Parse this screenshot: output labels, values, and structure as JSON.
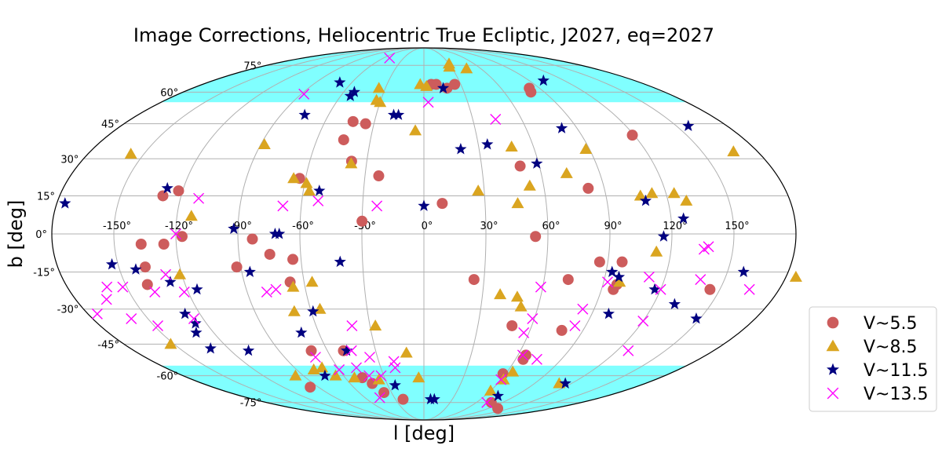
{
  "chart_data": {
    "type": "scatter",
    "projection": "mollweide",
    "title": "Image Corrections, Heliocentric True Ecliptic, J2027, eq=2027",
    "xlabel": "l [deg]",
    "ylabel": "b [deg]",
    "xlim": [
      -180,
      180
    ],
    "ylim": [
      -90,
      90
    ],
    "grid": true,
    "legend_position": "lower-right-outside",
    "x_ticks": [
      {
        "value": -150,
        "label": "-150°"
      },
      {
        "value": -120,
        "label": "-120°"
      },
      {
        "value": -90,
        "label": "-90°"
      },
      {
        "value": -60,
        "label": "-60°"
      },
      {
        "value": -30,
        "label": "-30°"
      },
      {
        "value": 0,
        "label": "0°"
      },
      {
        "value": 30,
        "label": "30°"
      },
      {
        "value": 60,
        "label": "60°"
      },
      {
        "value": 90,
        "label": "90°"
      },
      {
        "value": 120,
        "label": "120°"
      },
      {
        "value": 150,
        "label": "150°"
      }
    ],
    "y_ticks": [
      {
        "value": 75,
        "label": "75°"
      },
      {
        "value": 60,
        "label": "60°"
      },
      {
        "value": 45,
        "label": "45°"
      },
      {
        "value": 30,
        "label": "30°"
      },
      {
        "value": 15,
        "label": "15°"
      },
      {
        "value": 0,
        "label": "0°"
      },
      {
        "value": -15,
        "label": "-15°"
      },
      {
        "value": -30,
        "label": "-30°"
      },
      {
        "value": -45,
        "label": "-45°"
      },
      {
        "value": -60,
        "label": "-60°"
      },
      {
        "value": -75,
        "label": "-75°"
      }
    ],
    "shaded_bands": [
      {
        "from": 55,
        "to": 90,
        "color": "#80ffff"
      },
      {
        "from": -90,
        "to": -55,
        "color": "#80ffff"
      }
    ],
    "series": [
      {
        "name": "V~5.5",
        "marker": "circle",
        "color": "#cd5c5c",
        "points": [
          [
            18,
            62
          ],
          [
            10,
            64
          ],
          [
            6,
            64
          ],
          [
            25,
            64
          ],
          [
            82,
            62
          ],
          [
            80,
            60
          ],
          [
            -43,
            46
          ],
          [
            -35,
            45
          ],
          [
            -45,
            38
          ],
          [
            -38,
            29
          ],
          [
            -23,
            23
          ],
          [
            -63,
            22
          ],
          [
            -129,
            15
          ],
          [
            -122,
            17
          ],
          [
            -30,
            5
          ],
          [
            9,
            12
          ],
          [
            50,
            27
          ],
          [
            82,
            18
          ],
          [
            119,
            40
          ],
          [
            -137,
            -4
          ],
          [
            -117,
            -1
          ],
          [
            -126,
            -4
          ],
          [
            -83,
            -2
          ],
          [
            -64,
            -10
          ],
          [
            -75,
            -8
          ],
          [
            -92,
            -13
          ],
          [
            -137,
            -13
          ],
          [
            -139,
            -20
          ],
          [
            -67,
            -19
          ],
          [
            25,
            -18
          ],
          [
            86,
            -11
          ],
          [
            97,
            -11
          ],
          [
            97,
            -20
          ],
          [
            96,
            -22
          ],
          [
            145,
            -22
          ],
          [
            54,
            -1
          ],
          [
            72,
            -18
          ],
          [
            49,
            -37
          ],
          [
            78,
            -39
          ],
          [
            65,
            -50
          ],
          [
            65,
            -52
          ],
          [
            -50,
            -48
          ],
          [
            -70,
            -48
          ],
          [
            -47,
            -61
          ],
          [
            -42,
            -64
          ],
          [
            -37,
            -69
          ],
          [
            -22,
            -73
          ],
          [
            58,
            -59
          ],
          [
            77,
            -75
          ],
          [
            103,
            -79
          ],
          [
            -97,
            -66
          ]
        ]
      },
      {
        "name": "V~8.5",
        "marker": "triangle",
        "color": "#daa520",
        "points": [
          [
            30,
            76
          ],
          [
            28,
            74
          ],
          [
            45,
            73
          ],
          [
            -3,
            64
          ],
          [
            2,
            63
          ],
          [
            -35,
            62
          ],
          [
            -33,
            56
          ],
          [
            -30,
            55
          ],
          [
            -5,
            42
          ],
          [
            -88,
            36
          ],
          [
            48,
            35
          ],
          [
            -157,
            32
          ],
          [
            -38,
            28
          ],
          [
            88,
            34
          ],
          [
            167,
            33
          ],
          [
            -66,
            22
          ],
          [
            -59,
            20
          ],
          [
            -57,
            17
          ],
          [
            27,
            17
          ],
          [
            73,
            24
          ],
          [
            53,
            19
          ],
          [
            46,
            12
          ],
          [
            107,
            15
          ],
          [
            113,
            16
          ],
          [
            124,
            16
          ],
          [
            129,
            13
          ],
          [
            -113,
            7
          ],
          [
            113,
            -7
          ],
          [
            -121,
            -16
          ],
          [
            -56,
            -19
          ],
          [
            -66,
            -21
          ],
          [
            -55,
            -30
          ],
          [
            -69,
            -31
          ],
          [
            39,
            -24
          ],
          [
            48,
            -25
          ],
          [
            51,
            -29
          ],
          [
            98,
            -19
          ],
          [
            185,
            -17
          ],
          [
            -152,
            -45
          ],
          [
            -27,
            -37
          ],
          [
            -11,
            -49
          ],
          [
            -4,
            -61
          ],
          [
            -71,
            -56
          ],
          [
            -78,
            -57
          ],
          [
            -66,
            -60
          ],
          [
            -53,
            -61
          ],
          [
            -35,
            -62
          ],
          [
            -96,
            -60
          ],
          [
            64,
            -58
          ],
          [
            62,
            -62
          ],
          [
            60,
            -68
          ],
          [
            110,
            -64
          ]
        ]
      },
      {
        "name": "V~11.5",
        "marker": "star",
        "color": "#000080",
        "points": [
          [
            15,
            62
          ],
          [
            -53,
            58
          ],
          [
            -52,
            60
          ],
          [
            -70,
            65
          ],
          [
            102,
            66
          ],
          [
            -75,
            49
          ],
          [
            -19,
            49
          ],
          [
            -16,
            49
          ],
          [
            81,
            43
          ],
          [
            157,
            44
          ],
          [
            20,
            34
          ],
          [
            35,
            36
          ],
          [
            59,
            28
          ],
          [
            -128,
            18
          ],
          [
            -52,
            17
          ],
          [
            0,
            11
          ],
          [
            109,
            13
          ],
          [
            126,
            6
          ],
          [
            -92,
            2
          ],
          [
            -72,
            0
          ],
          [
            -70,
            0
          ],
          [
            116,
            -1
          ],
          [
            -176,
            12
          ],
          [
            -153,
            -12
          ],
          [
            -142,
            -14
          ],
          [
            -41,
            -11
          ],
          [
            -86,
            -15
          ],
          [
            -127,
            -19
          ],
          [
            -115,
            -22
          ],
          [
            93,
            -15
          ],
          [
            97,
            -17
          ],
          [
            117,
            -22
          ],
          [
            -128,
            -32
          ],
          [
            -126,
            -36
          ],
          [
            -59,
            -31
          ],
          [
            99,
            -32
          ],
          [
            131,
            -28
          ],
          [
            148,
            -34
          ],
          [
            158,
            -15
          ],
          [
            -70,
            -40
          ],
          [
            -130,
            -40
          ],
          [
            -131,
            -47
          ],
          [
            -109,
            -48
          ],
          [
            -48,
            -48
          ],
          [
            -74,
            -60
          ],
          [
            -24,
            -65
          ],
          [
            7,
            -73
          ],
          [
            11,
            -73
          ],
          [
            73,
            -71
          ],
          [
            115,
            -64
          ]
        ]
      },
      {
        "name": "V~13.5",
        "marker": "x",
        "color": "#ff00ff",
        "points": [
          [
            -51,
            80
          ],
          [
            -88,
            59
          ],
          [
            3,
            55
          ],
          [
            44,
            47
          ],
          [
            -111,
            14
          ],
          [
            -69,
            11
          ],
          [
            -52,
            13
          ],
          [
            -23,
            11
          ],
          [
            -120,
            0
          ],
          [
            -175,
            -32
          ],
          [
            -164,
            -26
          ],
          [
            -160,
            -21
          ],
          [
            -152,
            -21
          ],
          [
            -148,
            -37
          ],
          [
            -159,
            -34
          ],
          [
            -137,
            -23
          ],
          [
            -128,
            -16
          ],
          [
            -122,
            -23
          ],
          [
            -125,
            -34
          ],
          [
            -80,
            -23
          ],
          [
            -75,
            -22
          ],
          [
            120,
            -22
          ],
          [
            112,
            -17
          ],
          [
            92,
            -19
          ],
          [
            59,
            -21
          ],
          [
            59,
            -34
          ],
          [
            84,
            -30
          ],
          [
            84,
            -37
          ],
          [
            57,
            -40
          ],
          [
            120,
            -35
          ],
          [
            136,
            -6
          ],
          [
            138,
            -5
          ],
          [
            138,
            -18
          ],
          [
            165,
            -22
          ],
          [
            -40,
            -37
          ],
          [
            -45,
            -48
          ],
          [
            -35,
            -51
          ],
          [
            -70,
            -51
          ],
          [
            -60,
            -57
          ],
          [
            -47,
            -56
          ],
          [
            -41,
            -60
          ],
          [
            -32,
            -60
          ],
          [
            -20,
            -53
          ],
          [
            -20,
            -56
          ],
          [
            -45,
            -72
          ],
          [
            63,
            -50
          ],
          [
            74,
            -52
          ],
          [
            60,
            -62
          ],
          [
            72,
            -75
          ],
          [
            127,
            -48
          ]
        ]
      }
    ]
  }
}
